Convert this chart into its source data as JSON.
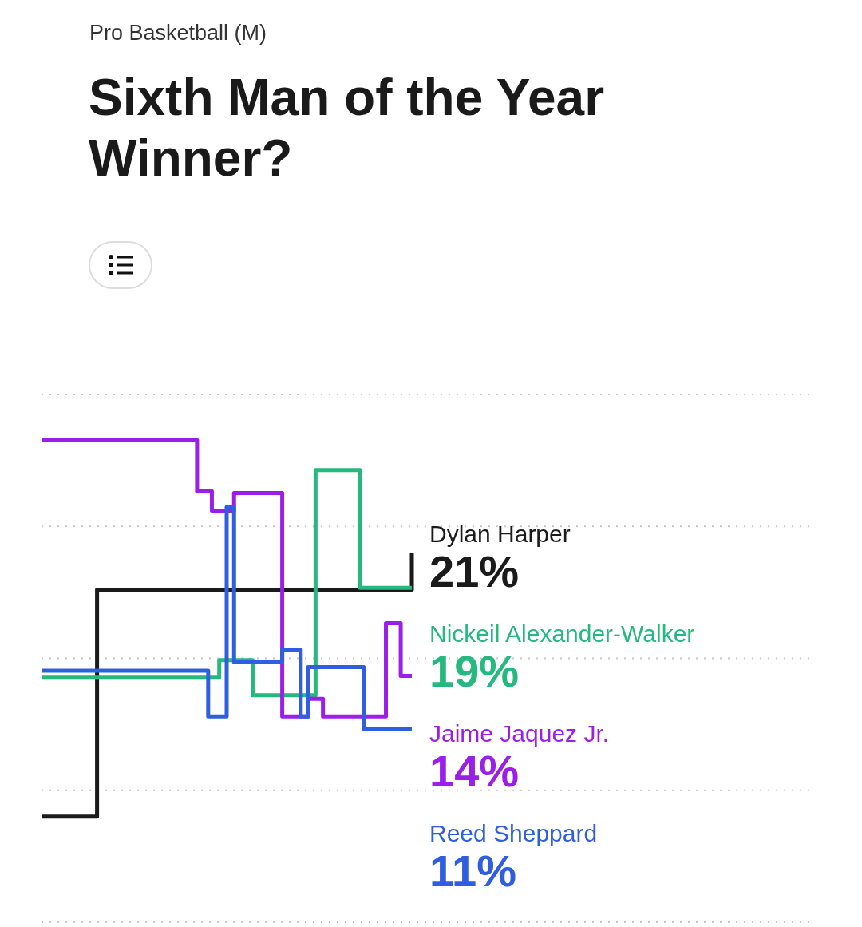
{
  "chart_data": {
    "type": "step",
    "subtitle": "Pro Basketball (M)",
    "title": "Sixth Man of the Year Winner?",
    "categories": [
      null,
      null,
      null,
      null,
      null,
      null,
      null,
      null,
      null,
      null,
      null,
      null,
      null,
      null,
      null,
      null,
      null,
      null,
      null,
      null,
      null,
      null,
      null,
      null,
      null,
      null,
      null,
      null,
      null,
      null,
      null,
      null,
      null,
      null,
      null,
      null,
      null,
      null,
      null,
      null,
      null,
      null,
      null,
      null,
      null,
      null,
      null,
      null,
      null,
      null,
      null,
      null,
      null,
      null,
      null,
      null,
      null,
      null,
      null,
      null,
      null,
      null,
      null,
      null,
      null,
      null,
      null,
      null,
      null,
      null,
      null,
      null,
      null,
      null,
      null,
      null,
      null,
      null,
      null,
      null,
      null,
      null,
      null,
      null,
      null,
      null,
      null,
      null,
      null,
      null,
      null,
      null,
      null,
      null,
      null,
      null,
      null,
      null,
      null,
      null,
      null
    ],
    "ylim": [
      0,
      30
    ],
    "yticks": [
      {
        "value": 0,
        "label": null
      },
      {
        "value": 7.5,
        "label": null
      },
      {
        "value": 15,
        "label": null
      },
      {
        "value": 22.5,
        "label": null
      },
      {
        "value": 30,
        "label": null
      }
    ],
    "grid": "y",
    "tick_labels": false,
    "legend": false,
    "marker": "none",
    "line_style": "solid",
    "series": [
      {
        "name": "Dylan Harper",
        "color": "#1a1a1a",
        "values": [
          6,
          6,
          6,
          6,
          6,
          6,
          6,
          6,
          6,
          6,
          6,
          6,
          6,
          6,
          6,
          18.9,
          18.9,
          18.9,
          18.9,
          18.9,
          18.9,
          18.9,
          18.9,
          18.9,
          18.9,
          18.9,
          18.9,
          18.9,
          18.9,
          18.9,
          18.9,
          18.9,
          18.9,
          18.9,
          18.9,
          18.9,
          18.9,
          18.9,
          18.9,
          18.9,
          18.9,
          18.9,
          18.9,
          18.9,
          18.9,
          18.9,
          18.9,
          18.9,
          18.9,
          18.9,
          18.9,
          18.9,
          18.9,
          18.9,
          18.9,
          18.9,
          18.9,
          18.9,
          18.9,
          18.9,
          18.9,
          18.9,
          18.9,
          18.9,
          18.9,
          18.9,
          18.9,
          18.9,
          18.9,
          18.9,
          18.9,
          18.9,
          18.9,
          18.9,
          18.9,
          18.9,
          18.9,
          18.9,
          18.9,
          18.9,
          18.9,
          18.9,
          18.9,
          18.9,
          18.9,
          18.9,
          18.9,
          18.9,
          18.9,
          18.9,
          18.9,
          18.9,
          18.9,
          18.9,
          18.9,
          18.9,
          18.9,
          18.9,
          18.9,
          18.9,
          21
        ],
        "value_labels": [
          null,
          null,
          null,
          null,
          null,
          null,
          null,
          null,
          null,
          null,
          null,
          null,
          null,
          null,
          null,
          null,
          null,
          null,
          null,
          null,
          null,
          null,
          null,
          null,
          null,
          null,
          null,
          null,
          null,
          null,
          null,
          null,
          null,
          null,
          null,
          null,
          null,
          null,
          null,
          null,
          null,
          null,
          null,
          null,
          null,
          null,
          null,
          null,
          null,
          null,
          null,
          null,
          null,
          null,
          null,
          null,
          null,
          null,
          null,
          null,
          null,
          null,
          null,
          null,
          null,
          null,
          null,
          null,
          null,
          null,
          null,
          null,
          null,
          null,
          null,
          null,
          null,
          null,
          null,
          null,
          null,
          null,
          null,
          null,
          null,
          null,
          null,
          null,
          null,
          null,
          null,
          null,
          null,
          null,
          null,
          null,
          null,
          null,
          null,
          null,
          "21%"
        ]
      },
      {
        "name": "Nickeil Alexander-Walker",
        "color": "#25b97f",
        "values": [
          13.9,
          13.9,
          13.9,
          13.9,
          13.9,
          13.9,
          13.9,
          13.9,
          13.9,
          13.9,
          13.9,
          13.9,
          13.9,
          13.9,
          13.9,
          13.9,
          13.9,
          13.9,
          13.9,
          13.9,
          13.9,
          13.9,
          13.9,
          13.9,
          13.9,
          13.9,
          13.9,
          13.9,
          13.9,
          13.9,
          13.9,
          13.9,
          13.9,
          13.9,
          13.9,
          13.9,
          13.9,
          13.9,
          13.9,
          13.9,
          13.9,
          13.9,
          13.9,
          13.9,
          13.9,
          13.9,
          13.9,
          13.9,
          14.9,
          14.9,
          14.9,
          14.9,
          14.9,
          14.9,
          14.9,
          14.9,
          14.9,
          12.9,
          12.9,
          12.9,
          12.9,
          12.9,
          12.9,
          12.9,
          12.9,
          12.9,
          12.9,
          12.9,
          12.9,
          12.9,
          12.9,
          12.9,
          12.9,
          12.9,
          25.7,
          25.7,
          25.7,
          25.7,
          25.7,
          25.7,
          25.7,
          25.7,
          25.7,
          25.7,
          25.7,
          25.7,
          19,
          19,
          19,
          19,
          19,
          19,
          19,
          19,
          19,
          19,
          19,
          19,
          19,
          19,
          19
        ],
        "value_labels": [
          null,
          null,
          null,
          null,
          null,
          null,
          null,
          null,
          null,
          null,
          null,
          null,
          null,
          null,
          null,
          null,
          null,
          null,
          null,
          null,
          null,
          null,
          null,
          null,
          null,
          null,
          null,
          null,
          null,
          null,
          null,
          null,
          null,
          null,
          null,
          null,
          null,
          null,
          null,
          null,
          null,
          null,
          null,
          null,
          null,
          null,
          null,
          null,
          null,
          null,
          null,
          null,
          null,
          null,
          null,
          null,
          null,
          null,
          null,
          null,
          null,
          null,
          null,
          null,
          null,
          null,
          null,
          null,
          null,
          null,
          null,
          null,
          null,
          null,
          null,
          null,
          null,
          null,
          null,
          null,
          null,
          null,
          null,
          null,
          null,
          null,
          null,
          null,
          null,
          null,
          null,
          null,
          null,
          null,
          null,
          null,
          null,
          null,
          null,
          null,
          "19%"
        ]
      },
      {
        "name": "Jaime Jaquez Jr.",
        "color": "#9b1fe8",
        "values": [
          27.4,
          27.4,
          27.4,
          27.4,
          27.4,
          27.4,
          27.4,
          27.4,
          27.4,
          27.4,
          27.4,
          27.4,
          27.4,
          27.4,
          27.4,
          27.4,
          27.4,
          27.4,
          27.4,
          27.4,
          27.4,
          27.4,
          27.4,
          27.4,
          27.4,
          27.4,
          27.4,
          27.4,
          27.4,
          27.4,
          27.4,
          27.4,
          27.4,
          27.4,
          27.4,
          27.4,
          27.4,
          27.4,
          27.4,
          27.4,
          27.4,
          27.4,
          24.5,
          24.5,
          24.5,
          24.5,
          23.4,
          23.4,
          23.4,
          23.4,
          23.4,
          23.4,
          24.4,
          24.4,
          24.4,
          24.4,
          24.4,
          24.4,
          24.4,
          24.4,
          24.4,
          24.4,
          24.4,
          24.4,
          24.4,
          11.7,
          11.7,
          11.7,
          11.7,
          11.7,
          11.7,
          11.7,
          12.7,
          12.7,
          12.7,
          12.7,
          11.7,
          11.7,
          11.7,
          11.7,
          11.7,
          11.7,
          11.7,
          11.7,
          11.7,
          11.7,
          11.7,
          11.7,
          11.7,
          11.7,
          11.7,
          11.7,
          11.7,
          17,
          17,
          17,
          17,
          14,
          14,
          14,
          14
        ],
        "value_labels": [
          null,
          null,
          null,
          null,
          null,
          null,
          null,
          null,
          null,
          null,
          null,
          null,
          null,
          null,
          null,
          null,
          null,
          null,
          null,
          null,
          null,
          null,
          null,
          null,
          null,
          null,
          null,
          null,
          null,
          null,
          null,
          null,
          null,
          null,
          null,
          null,
          null,
          null,
          null,
          null,
          null,
          null,
          null,
          null,
          null,
          null,
          null,
          null,
          null,
          null,
          null,
          null,
          null,
          null,
          null,
          null,
          null,
          null,
          null,
          null,
          null,
          null,
          null,
          null,
          null,
          null,
          null,
          null,
          null,
          null,
          null,
          null,
          null,
          null,
          null,
          null,
          null,
          null,
          null,
          null,
          null,
          null,
          null,
          null,
          null,
          null,
          null,
          null,
          null,
          null,
          null,
          null,
          null,
          null,
          null,
          null,
          null,
          null,
          null,
          null,
          "14%"
        ]
      },
      {
        "name": "Reed Sheppard",
        "color": "#2f5fe0",
        "values": [
          14.3,
          14.3,
          14.3,
          14.3,
          14.3,
          14.3,
          14.3,
          14.3,
          14.3,
          14.3,
          14.3,
          14.3,
          14.3,
          14.3,
          14.3,
          14.3,
          14.3,
          14.3,
          14.3,
          14.3,
          14.3,
          14.3,
          14.3,
          14.3,
          14.3,
          14.3,
          14.3,
          14.3,
          14.3,
          14.3,
          14.3,
          14.3,
          14.3,
          14.3,
          14.3,
          14.3,
          14.3,
          14.3,
          14.3,
          14.3,
          14.3,
          14.3,
          14.3,
          14.3,
          14.3,
          11.7,
          11.7,
          11.7,
          11.7,
          11.7,
          23.6,
          23.6,
          14.8,
          14.8,
          14.8,
          14.8,
          14.8,
          14.8,
          14.8,
          14.8,
          14.8,
          14.8,
          14.8,
          14.8,
          14.8,
          15.5,
          15.5,
          15.5,
          15.5,
          15.5,
          11.7,
          11.7,
          14.5,
          14.5,
          14.5,
          14.5,
          14.5,
          14.5,
          14.5,
          14.5,
          14.5,
          14.5,
          14.5,
          14.5,
          14.5,
          14.5,
          14.5,
          11,
          11,
          11,
          11,
          11,
          11,
          11,
          11,
          11,
          11,
          11,
          11,
          11,
          11
        ],
        "value_labels": [
          null,
          null,
          null,
          null,
          null,
          null,
          null,
          null,
          null,
          null,
          null,
          null,
          null,
          null,
          null,
          null,
          null,
          null,
          null,
          null,
          null,
          null,
          null,
          null,
          null,
          null,
          null,
          null,
          null,
          null,
          null,
          null,
          null,
          null,
          null,
          null,
          null,
          null,
          null,
          null,
          null,
          null,
          null,
          null,
          null,
          null,
          null,
          null,
          null,
          null,
          null,
          null,
          null,
          null,
          null,
          null,
          null,
          null,
          null,
          null,
          null,
          null,
          null,
          null,
          null,
          null,
          null,
          null,
          null,
          null,
          null,
          null,
          null,
          null,
          null,
          null,
          null,
          null,
          null,
          null,
          null,
          null,
          null,
          null,
          null,
          null,
          null,
          null,
          null,
          null,
          null,
          null,
          null,
          null,
          null,
          null,
          null,
          null,
          null,
          null,
          "11%"
        ]
      }
    ]
  }
}
